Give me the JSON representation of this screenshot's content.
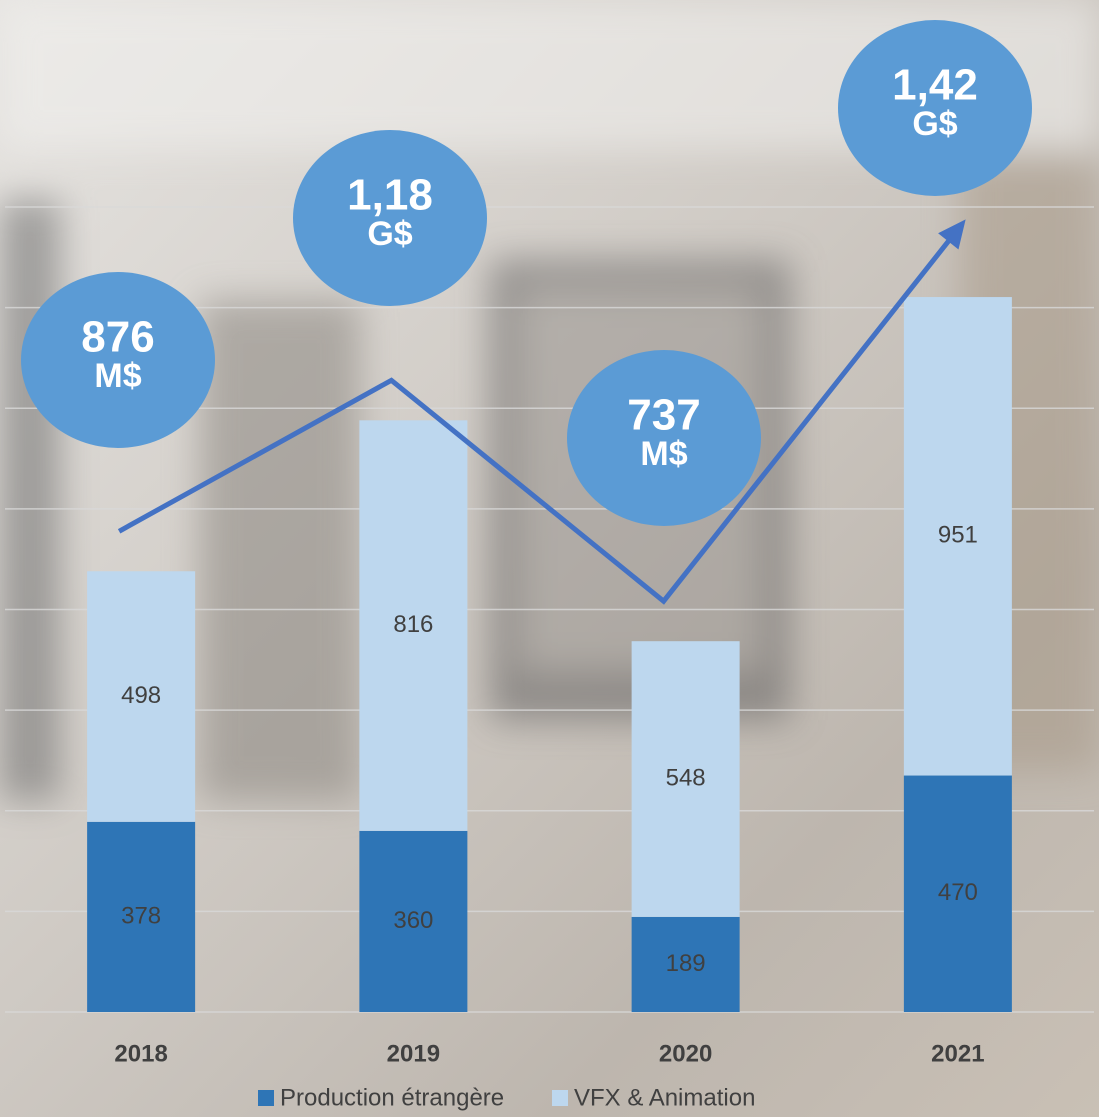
{
  "chart_data": {
    "type": "stacked_bar",
    "categories": [
      "2018",
      "2019",
      "2020",
      "2021"
    ],
    "series": [
      {
        "name": "Production étrangère",
        "color": "#2e75b6",
        "values": [
          378,
          360,
          189,
          470
        ]
      },
      {
        "name": "VFX & Animation",
        "color": "#bdd7ee",
        "values": [
          498,
          816,
          548,
          951
        ]
      }
    ],
    "totals": {
      "values": [
        876,
        1176,
        737,
        1421
      ],
      "color": "#5b9bd5",
      "line_color": "#4472c4",
      "labels": [
        [
          "876",
          "M$"
        ],
        [
          "1,18",
          "G$"
        ],
        [
          "737",
          "M$"
        ],
        [
          "1,42",
          "G$"
        ]
      ]
    },
    "ylim": [
      0,
      1600
    ],
    "yticks": [
      0,
      200,
      400,
      600,
      800,
      1000,
      1200,
      1400,
      1600
    ],
    "grid": true,
    "legend": "bottom"
  }
}
